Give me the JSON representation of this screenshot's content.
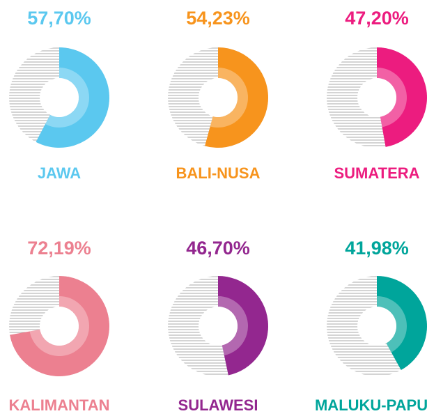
{
  "chart_data": [
    {
      "type": "donut",
      "title": "JAWA",
      "values": [
        57.7
      ],
      "value_labels": [
        "57,70%"
      ],
      "color": "#5bc8ef"
    },
    {
      "type": "donut",
      "title": "BALI-NUSA",
      "values": [
        54.23
      ],
      "value_labels": [
        "54,23%"
      ],
      "color": "#f7941d"
    },
    {
      "type": "donut",
      "title": "SUMATERA",
      "values": [
        47.2
      ],
      "value_labels": [
        "47,20%"
      ],
      "color": "#ec1c7f"
    },
    {
      "type": "donut",
      "title": "KALIMANTAN",
      "values": [
        72.19
      ],
      "value_labels": [
        "72,19%"
      ],
      "color": "#ec8090"
    },
    {
      "type": "donut",
      "title": "SULAWESI",
      "values": [
        46.7
      ],
      "value_labels": [
        "46,70%"
      ],
      "color": "#93278f"
    },
    {
      "type": "donut",
      "title": "MALUKU-PAPUA",
      "values": [
        41.98
      ],
      "value_labels": [
        "41,98%"
      ],
      "color": "#00a59b"
    }
  ]
}
